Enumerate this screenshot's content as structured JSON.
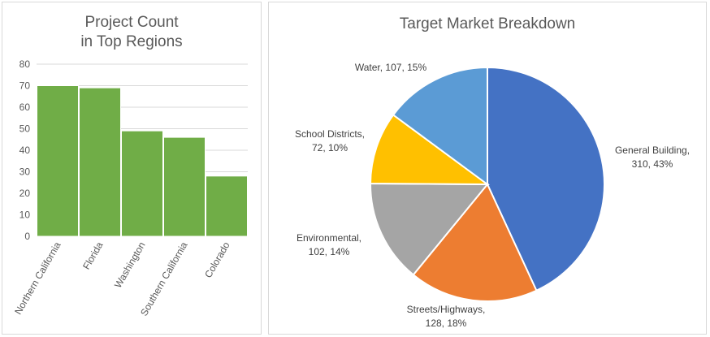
{
  "chart_data": [
    {
      "type": "bar",
      "title_lines": [
        "Project Count",
        "in Top Regions"
      ],
      "categories": [
        "Northern California",
        "Florida",
        "Washington",
        "Southern California",
        "Colorado"
      ],
      "values": [
        70,
        69,
        49,
        46,
        28
      ],
      "ylim": [
        0,
        80
      ],
      "yticks": [
        "0",
        "10",
        "20",
        "30",
        "40",
        "50",
        "60",
        "70",
        "80"
      ],
      "grid": true,
      "color": "#70ad47",
      "xlabel": "",
      "ylabel": ""
    },
    {
      "type": "pie",
      "title": "Target Market Breakdown",
      "slices": [
        {
          "label_lines": [
            "General Building,",
            "310, 43%"
          ],
          "value": 310,
          "color": "#4472c4"
        },
        {
          "label_lines": [
            "Streets/Highways,",
            "128, 18%"
          ],
          "value": 128,
          "color": "#ed7d31"
        },
        {
          "label_lines": [
            "Environmental,",
            "102, 14%"
          ],
          "value": 102,
          "color": "#a5a5a5"
        },
        {
          "label_lines": [
            "School Districts,",
            "72, 10%"
          ],
          "value": 72,
          "color": "#ffc000"
        },
        {
          "label_lines": [
            "Water, 107, 15%"
          ],
          "value": 107,
          "color": "#5b9bd5"
        }
      ]
    }
  ]
}
